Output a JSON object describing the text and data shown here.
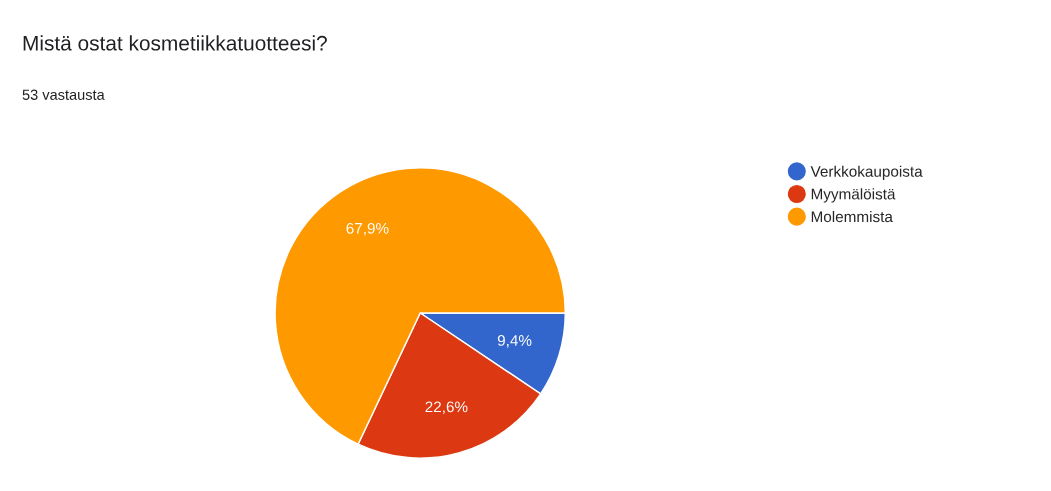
{
  "chart_data": {
    "type": "pie",
    "title": "Mistä ostat kosmetiikkatuotteesi?",
    "subtitle": "53 vastausta",
    "categories": [
      "Verkkokaupoista",
      "Myymälöistä",
      "Molemmista"
    ],
    "values": [
      9.4,
      22.6,
      67.9
    ],
    "colors": [
      "#3366cc",
      "#dc3912",
      "#ff9900"
    ],
    "value_labels": [
      "9,4%",
      "22,6%",
      "67,9%"
    ],
    "legend": "right"
  }
}
